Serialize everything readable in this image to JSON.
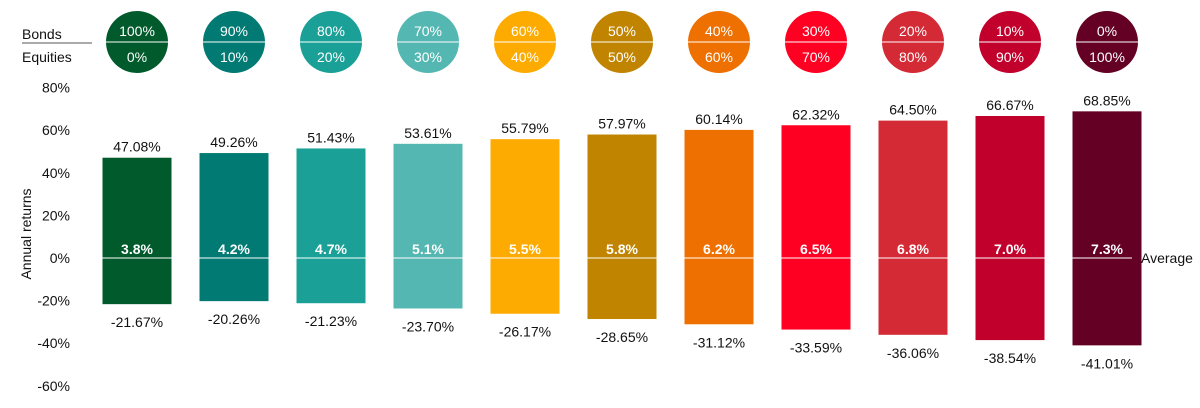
{
  "chart_data": {
    "type": "bar",
    "header": {
      "bonds_label": "Bonds",
      "equities_label": "Equities"
    },
    "ylabel": "Annual returns",
    "ylim": [
      -60,
      80
    ],
    "yticks": [
      "80%",
      "60%",
      "40%",
      "20%",
      "0%",
      "-20%",
      "-40%",
      "-60%"
    ],
    "ytick_values": [
      80,
      60,
      40,
      20,
      0,
      -20,
      -40,
      -60
    ],
    "average_label": "Average",
    "portfolios": [
      {
        "bonds": "100%",
        "equities": "0%",
        "max": 47.08,
        "min": -21.67,
        "avg": 3.8,
        "max_label": "47.08%",
        "min_label": "-21.67%",
        "avg_label": "3.8%",
        "color": "#005a2b"
      },
      {
        "bonds": "90%",
        "equities": "10%",
        "max": 49.26,
        "min": -20.26,
        "avg": 4.2,
        "max_label": "49.26%",
        "min_label": "-20.26%",
        "avg_label": "4.2%",
        "color": "#007a72"
      },
      {
        "bonds": "80%",
        "equities": "20%",
        "max": 51.43,
        "min": -21.23,
        "avg": 4.7,
        "max_label": "51.43%",
        "min_label": "-21.23%",
        "avg_label": "4.7%",
        "color": "#1aa096"
      },
      {
        "bonds": "70%",
        "equities": "30%",
        "max": 53.61,
        "min": -23.7,
        "avg": 5.1,
        "max_label": "53.61%",
        "min_label": "-23.70%",
        "avg_label": "5.1%",
        "color": "#54b7b1"
      },
      {
        "bonds": "60%",
        "equities": "40%",
        "max": 55.79,
        "min": -26.17,
        "avg": 5.5,
        "max_label": "55.79%",
        "min_label": "-26.17%",
        "avg_label": "5.5%",
        "color": "#fdab00"
      },
      {
        "bonds": "50%",
        "equities": "50%",
        "max": 57.97,
        "min": -28.65,
        "avg": 5.8,
        "max_label": "57.97%",
        "min_label": "-28.65%",
        "avg_label": "5.8%",
        "color": "#c08400"
      },
      {
        "bonds": "40%",
        "equities": "60%",
        "max": 60.14,
        "min": -31.12,
        "avg": 6.2,
        "max_label": "60.14%",
        "min_label": "-31.12%",
        "avg_label": "6.2%",
        "color": "#ee7000"
      },
      {
        "bonds": "30%",
        "equities": "70%",
        "max": 62.32,
        "min": -33.59,
        "avg": 6.5,
        "max_label": "62.32%",
        "min_label": "-33.59%",
        "avg_label": "6.5%",
        "color": "#fd0022"
      },
      {
        "bonds": "20%",
        "equities": "80%",
        "max": 64.5,
        "min": -36.06,
        "avg": 6.8,
        "max_label": "64.50%",
        "min_label": "-36.06%",
        "avg_label": "6.8%",
        "color": "#d42a36"
      },
      {
        "bonds": "10%",
        "equities": "90%",
        "max": 66.67,
        "min": -38.54,
        "avg": 7.0,
        "max_label": "66.67%",
        "min_label": "-38.54%",
        "avg_label": "7.0%",
        "color": "#c2002c"
      },
      {
        "bonds": "0%",
        "equities": "100%",
        "max": 68.85,
        "min": -41.01,
        "avg": 7.3,
        "max_label": "68.85%",
        "min_label": "-41.01%",
        "avg_label": "7.3%",
        "color": "#630023"
      }
    ],
    "grid": false,
    "legend": "none"
  }
}
